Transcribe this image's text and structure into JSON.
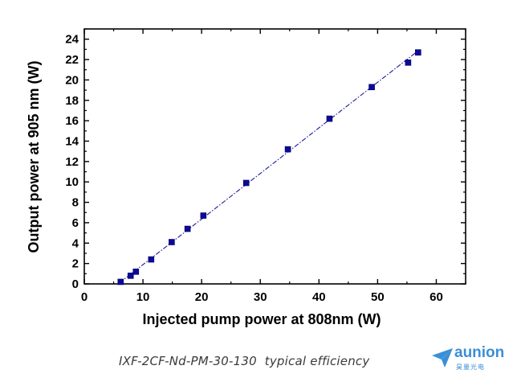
{
  "chart_data": {
    "type": "scatter",
    "xlabel": "Injected pump power at 808nm (W)",
    "ylabel": "Output power at 905 nm (W)",
    "xlim": [
      0,
      65
    ],
    "ylim": [
      0,
      25
    ],
    "xticks": [
      0,
      10,
      20,
      30,
      40,
      50,
      60
    ],
    "yticks": [
      0,
      2,
      4,
      6,
      8,
      10,
      12,
      14,
      16,
      18,
      20,
      22,
      24
    ],
    "grid": false,
    "marker": "square",
    "marker_color": "#0a0a9a",
    "fit_line": {
      "style": "dash-dot",
      "color": "#1a1a9a",
      "x": [
        6.0,
        57.0
      ],
      "y": [
        0.1,
        22.9
      ]
    },
    "series": [
      {
        "x": [
          6.2,
          7.9,
          8.8,
          11.4,
          14.9,
          17.6,
          20.3,
          27.6,
          34.7,
          41.8,
          49.0,
          55.2,
          56.9
        ],
        "y": [
          0.2,
          0.8,
          1.2,
          2.4,
          4.1,
          5.4,
          6.7,
          9.9,
          13.2,
          16.2,
          19.3,
          21.7,
          22.7
        ]
      }
    ]
  },
  "caption": "IXF-2CF-Nd-PM-30-130  typical efficiency",
  "logo": {
    "name": "aunion",
    "subtitle": "昊量光电",
    "color": "#3b8fd6"
  }
}
